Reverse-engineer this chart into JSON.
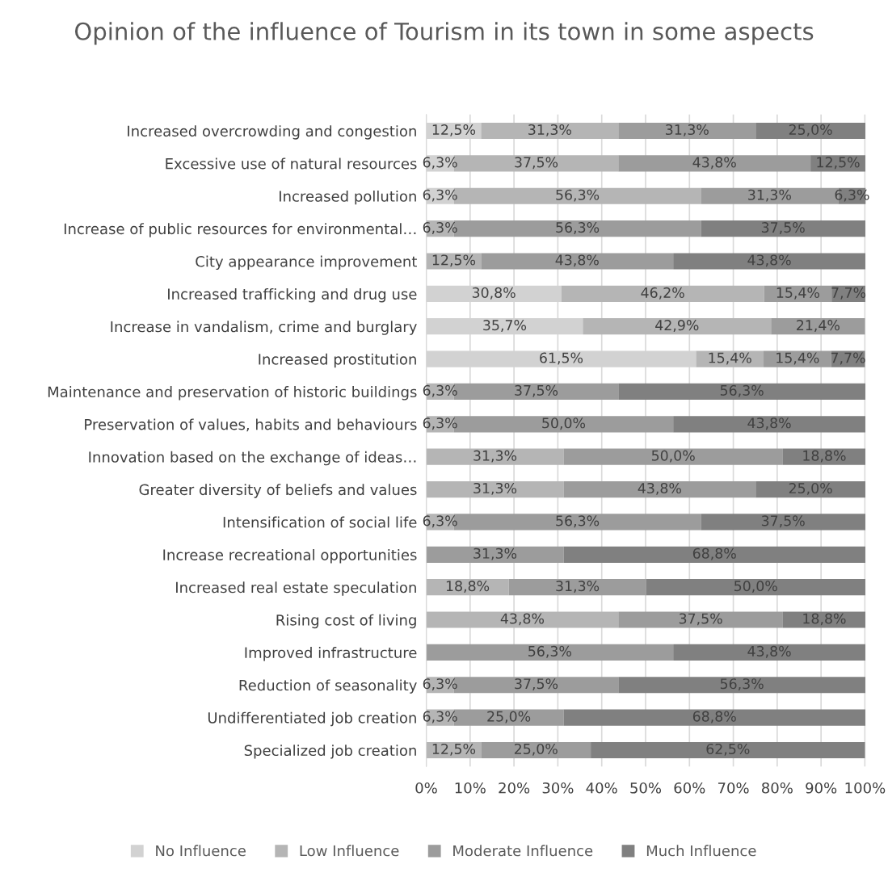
{
  "chart_data": {
    "type": "bar",
    "orientation": "horizontal",
    "stacked": true,
    "title": "Opinion of the influence of Tourism in its town in some aspects",
    "categories": [
      "Increased overcrowding and congestion",
      "Excessive use of natural resources",
      "Increased pollution",
      "Increase of public resources for environmental…",
      "City appearance improvement",
      "Increased trafficking and drug use",
      "Increase in vandalism, crime and burglary",
      "Increased prostitution",
      "Maintenance and preservation of historic buildings",
      "Preservation of values, habits and behaviours",
      "Innovation based on the exchange of ideas…",
      "Greater diversity of beliefs and values",
      "Intensification of social life",
      "Increase recreational opportunities",
      "Increased real estate speculation",
      "Rising cost of living",
      "Improved infrastructure",
      "Reduction of seasonality",
      "Undifferentiated job creation",
      "Specialized job creation"
    ],
    "series": [
      {
        "name": "No Influence",
        "color": "#d2d2d2",
        "values": [
          12.5,
          6.3,
          6.3,
          null,
          null,
          30.8,
          35.7,
          61.5,
          null,
          null,
          null,
          null,
          null,
          null,
          null,
          null,
          null,
          null,
          null,
          null
        ],
        "value_labels": [
          "12,5%",
          "6,3%",
          "6,3%",
          null,
          null,
          "30,8%",
          "35,7%",
          "61,5%",
          null,
          null,
          null,
          null,
          null,
          null,
          null,
          null,
          null,
          null,
          null,
          null
        ]
      },
      {
        "name": "Low Influence",
        "color": "#b5b5b5",
        "values": [
          31.3,
          37.5,
          56.3,
          6.3,
          12.5,
          46.2,
          42.9,
          15.4,
          6.3,
          6.3,
          31.3,
          31.3,
          6.3,
          null,
          18.8,
          43.8,
          null,
          6.3,
          6.3,
          12.5
        ],
        "value_labels": [
          "31,3%",
          "37,5%",
          "56,3%",
          "6,3%",
          "12,5%",
          "46,2%",
          "42,9%",
          "15,4%",
          "6,3%",
          "6,3%",
          "31,3%",
          "31,3%",
          "6,3%",
          null,
          "18,8%",
          "43,8%",
          null,
          "6,3%",
          "6,3%",
          "12,5%"
        ]
      },
      {
        "name": "Moderate Influence",
        "color": "#9c9c9c",
        "values": [
          31.3,
          43.8,
          31.3,
          56.3,
          43.8,
          15.4,
          21.4,
          15.4,
          37.5,
          50.0,
          50.0,
          43.8,
          56.3,
          31.3,
          31.3,
          37.5,
          56.3,
          37.5,
          25.0,
          25.0
        ],
        "value_labels": [
          "31,3%",
          "43,8%",
          "31,3%",
          "56,3%",
          "43,8%",
          "15,4%",
          "21,4%",
          "15,4%",
          "37,5%",
          "50,0%",
          "50,0%",
          "43,8%",
          "56,3%",
          "31,3%",
          "31,3%",
          "37,5%",
          "56,3%",
          "37,5%",
          "25,0%",
          "25,0%"
        ]
      },
      {
        "name": "Much Influence",
        "color": "#808080",
        "values": [
          25.0,
          12.5,
          6.3,
          37.5,
          43.8,
          7.7,
          null,
          7.7,
          56.3,
          43.8,
          18.8,
          25.0,
          37.5,
          68.8,
          50.0,
          18.8,
          43.8,
          56.3,
          68.8,
          62.5
        ],
        "value_labels": [
          "25,0%",
          "12,5%",
          "6,3%",
          "37,5%",
          "43,8%",
          "7,7%",
          null,
          "7,7%",
          "56,3%",
          "43,8%",
          "18,8%",
          "25,0%",
          "37,5%",
          "68,8%",
          "50,0%",
          "18,8%",
          "43,8%",
          "56,3%",
          "68,8%",
          "62,5%"
        ]
      }
    ],
    "xlim": [
      0,
      100.2
    ],
    "xticks": [
      {
        "value": 0,
        "label": "0%"
      },
      {
        "value": 10,
        "label": "10%"
      },
      {
        "value": 20,
        "label": "20%"
      },
      {
        "value": 30,
        "label": "30%"
      },
      {
        "value": 40,
        "label": "40%"
      },
      {
        "value": 50,
        "label": "50%"
      },
      {
        "value": 60,
        "label": "60%"
      },
      {
        "value": 70,
        "label": "70%"
      },
      {
        "value": 80,
        "label": "80%"
      },
      {
        "value": 90,
        "label": "90%"
      },
      {
        "value": 100,
        "label": "100%"
      }
    ],
    "grid": "x",
    "legend": "bottom"
  }
}
